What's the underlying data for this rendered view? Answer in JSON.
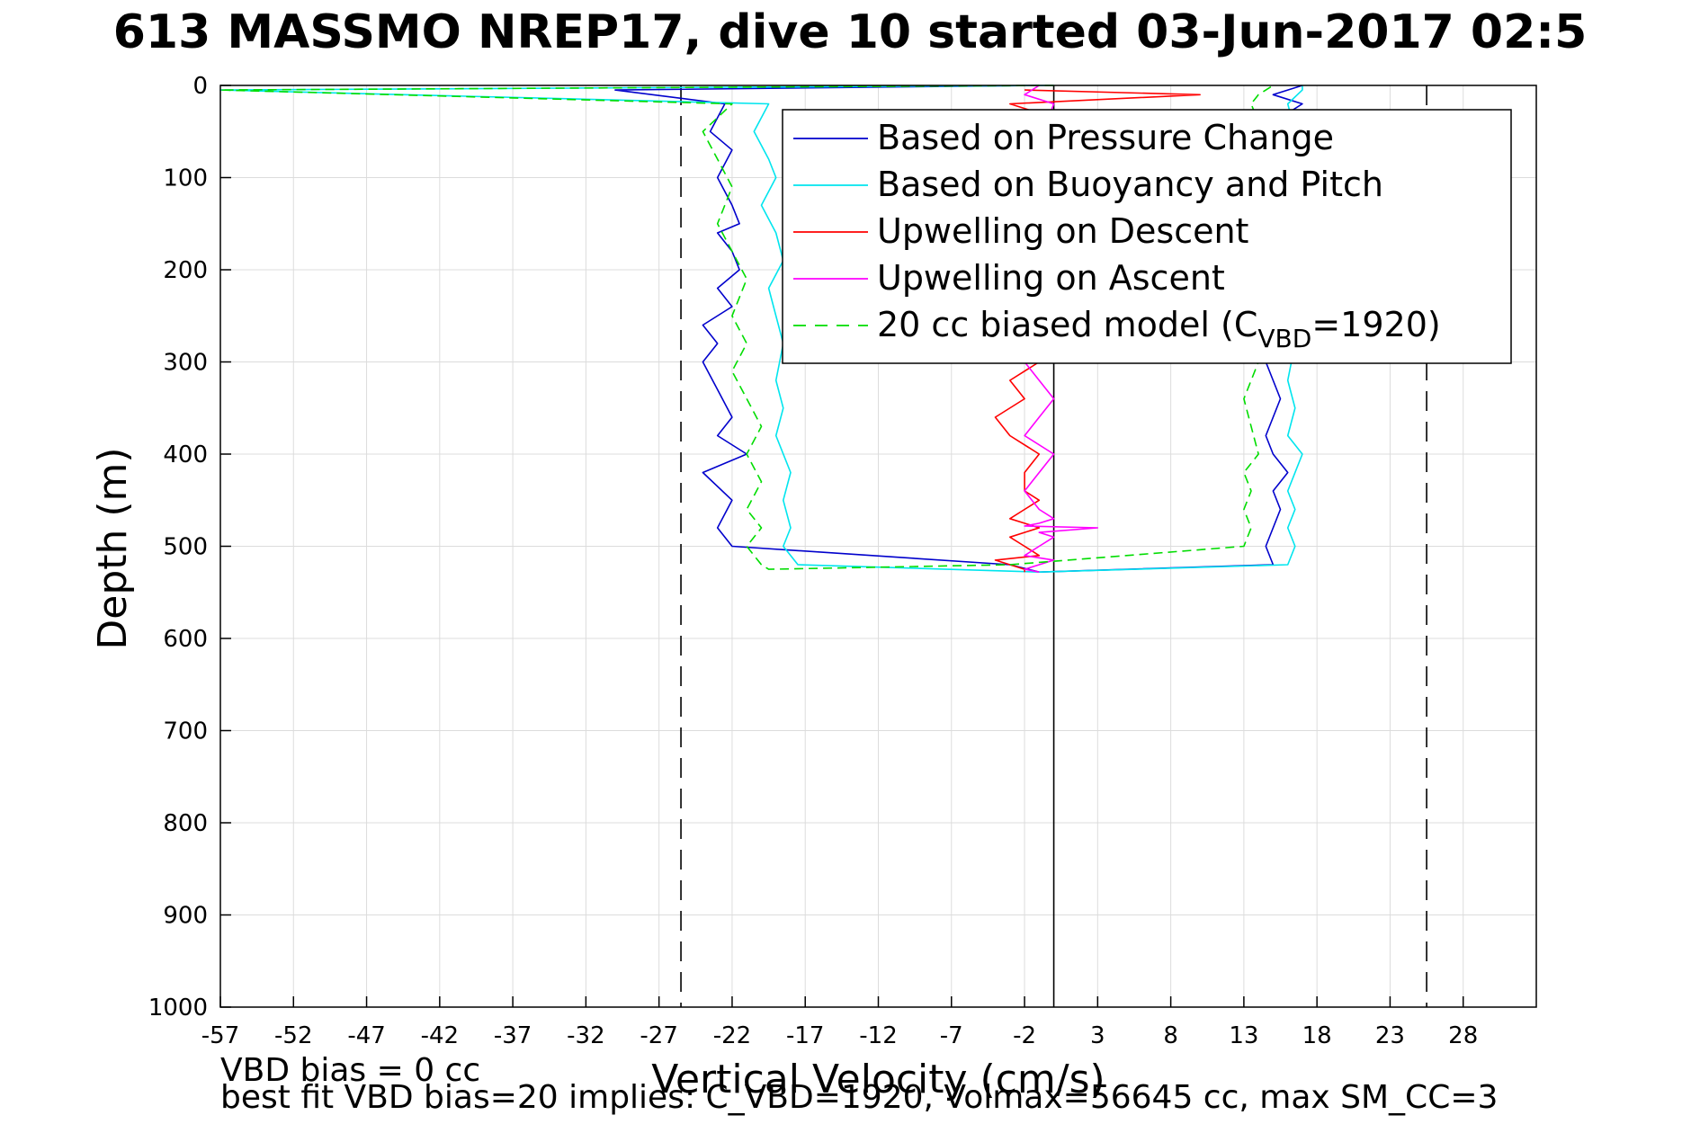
{
  "chart_data": {
    "type": "line",
    "title": "613 MASSMO NREP17, dive 10 started 03-Jun-2017 02:5",
    "xlabel": "Vertical Velocity (cm/s)",
    "ylabel": "Depth (m)",
    "xlim": [
      -57,
      33
    ],
    "ylim": [
      0,
      1000
    ],
    "y_reversed": true,
    "grid": true,
    "xticks": [
      "-57",
      "-52",
      "-47",
      "-42",
      "-37",
      "-32",
      "-27",
      "-22",
      "-17",
      "-12",
      "-7",
      "-2",
      "3",
      "8",
      "13",
      "18",
      "23",
      "28"
    ],
    "yticks": [
      "0",
      "100",
      "200",
      "300",
      "400",
      "500",
      "600",
      "700",
      "800",
      "900",
      "1000"
    ],
    "reference_lines": [
      {
        "x": -25.5,
        "style": "dashed",
        "color": "#000000"
      },
      {
        "x": 0,
        "style": "solid",
        "color": "#000000"
      },
      {
        "x": 25.5,
        "style": "dashed",
        "color": "#000000"
      }
    ],
    "legend": {
      "position": "top-right",
      "entries": [
        {
          "label": "Based on Pressure Change",
          "color": "#0000cc",
          "dash": false
        },
        {
          "label": "Based on Buoyancy and Pitch",
          "color": "#00e5ee",
          "dash": false
        },
        {
          "label": "Upwelling on Descent",
          "color": "#ff0000",
          "dash": false
        },
        {
          "label": "Upwelling on Ascent",
          "color": "#ff00ff",
          "dash": false
        },
        {
          "label_prefix": "20 cc biased model (C",
          "label_sub": "VBD",
          "label_suffix": "=1920)",
          "color": "#00dd00",
          "dash": true
        }
      ]
    },
    "series": [
      {
        "name": "Based on Pressure Change",
        "color": "#0000cc",
        "x": [
          -1,
          -30,
          -22.5,
          -23.5,
          -22,
          -23,
          -22,
          -21.5,
          -23,
          -22,
          -21.5,
          -23,
          -22,
          -24,
          -23,
          -24,
          -23,
          -22,
          -23,
          -21,
          -24,
          -22,
          -23,
          -22,
          -3,
          -1,
          15,
          14.5,
          15,
          15.5,
          15,
          16,
          15,
          14.5,
          15,
          15.5,
          15,
          14.5,
          15,
          16,
          15,
          15.5,
          14,
          15,
          16,
          15,
          17,
          18,
          15,
          16,
          17,
          15,
          16,
          17
        ],
        "y": [
          0,
          5,
          20,
          50,
          70,
          100,
          130,
          150,
          160,
          180,
          200,
          220,
          240,
          260,
          280,
          300,
          330,
          360,
          380,
          400,
          420,
          450,
          480,
          500,
          520,
          528,
          520,
          500,
          480,
          460,
          440,
          420,
          400,
          380,
          360,
          340,
          320,
          300,
          280,
          250,
          220,
          200,
          180,
          150,
          120,
          100,
          70,
          50,
          40,
          30,
          20,
          10,
          5,
          0
        ]
      },
      {
        "name": "Based on Buoyancy and Pitch",
        "color": "#00e5ee",
        "x": [
          0,
          -57,
          -19.5,
          -20.5,
          -19.5,
          -19,
          -20,
          -19,
          -18.5,
          -19.5,
          -19,
          -18.5,
          -19,
          -18.5,
          -19,
          -18,
          -18.5,
          -18,
          -18.5,
          -17.5,
          -1,
          16,
          16.5,
          16,
          16.5,
          16,
          17,
          16,
          16.5,
          16,
          16.5,
          16,
          17,
          16.5,
          16,
          17,
          16.5,
          16,
          17,
          17
        ],
        "y": [
          0,
          5,
          20,
          50,
          80,
          100,
          130,
          160,
          190,
          220,
          250,
          280,
          320,
          350,
          380,
          420,
          450,
          480,
          500,
          520,
          528,
          520,
          500,
          480,
          460,
          440,
          400,
          380,
          350,
          320,
          280,
          250,
          200,
          150,
          100,
          80,
          50,
          20,
          5,
          0
        ]
      },
      {
        "name": "Upwelling on Descent",
        "color": "#ff0000",
        "x": [
          -2,
          10,
          -3,
          -1,
          -2,
          -3,
          -1,
          -2,
          -3,
          -1,
          -4,
          -2,
          -1,
          -3,
          -2,
          -4,
          -3,
          -1,
          -2,
          -2,
          -1,
          -2,
          -3,
          -1,
          -3,
          -2,
          -1,
          -4,
          -3,
          -2,
          -2
        ],
        "y": [
          5,
          10,
          20,
          30,
          60,
          90,
          120,
          150,
          180,
          210,
          240,
          270,
          300,
          320,
          340,
          360,
          380,
          400,
          420,
          440,
          450,
          460,
          470,
          480,
          490,
          500,
          510,
          515,
          520,
          525,
          528
        ]
      },
      {
        "name": "Upwelling on Ascent",
        "color": "#ff00ff",
        "x": [
          -1,
          -2,
          0,
          -1,
          -2,
          -1,
          0,
          -2,
          -1,
          -2,
          -1,
          0,
          -1,
          -2,
          0,
          -1,
          -2,
          -1,
          0,
          -1,
          -2,
          3,
          -1,
          0,
          -1,
          -2,
          0,
          -1,
          -2,
          -1
        ],
        "y": [
          0,
          10,
          20,
          60,
          100,
          140,
          180,
          220,
          260,
          300,
          320,
          340,
          360,
          380,
          400,
          420,
          440,
          460,
          470,
          475,
          478,
          480,
          485,
          490,
          500,
          510,
          515,
          520,
          525,
          528
        ]
      },
      {
        "name": "20 cc biased model (C_VBD=1920)",
        "color": "#00dd00",
        "dashed": true,
        "x": [
          0,
          -57,
          -22,
          -24,
          -23,
          -22,
          -23,
          -22,
          -21,
          -22,
          -21,
          -22,
          -21,
          -20,
          -21,
          -20,
          -21,
          -20,
          -21,
          -20,
          -19.5,
          -3,
          13,
          13.5,
          13,
          13.5,
          13,
          14,
          13.5,
          13,
          14,
          13.5,
          13,
          14,
          13.5,
          13,
          14,
          13.5,
          14,
          15
        ],
        "y": [
          0,
          5,
          20,
          50,
          80,
          110,
          150,
          180,
          210,
          250,
          280,
          310,
          340,
          370,
          400,
          430,
          460,
          480,
          500,
          520,
          525,
          520,
          500,
          480,
          460,
          440,
          420,
          400,
          370,
          340,
          300,
          250,
          200,
          150,
          100,
          70,
          40,
          20,
          10,
          0
        ]
      }
    ]
  },
  "footnotes": {
    "line1": "VBD bias = 0 cc",
    "line2": "best fit VBD bias=20 implies: C_VBD=1920, Volmax=56645 cc, max SM_CC=3"
  }
}
